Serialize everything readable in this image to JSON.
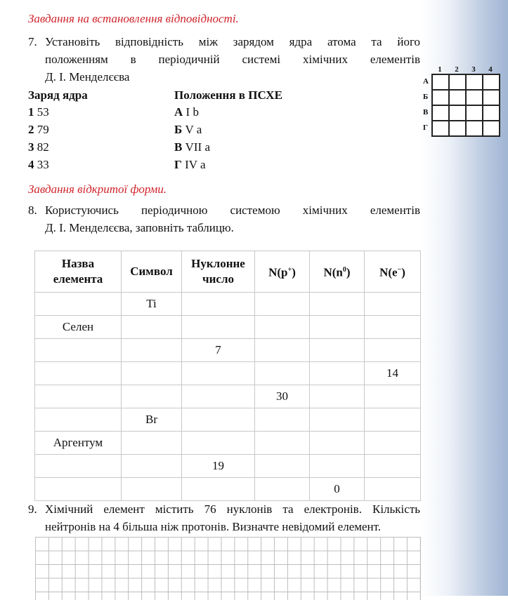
{
  "section1_title": "Завдання на встановлення відповідності.",
  "q7": {
    "number": "7.",
    "line1": "Установіть відповідність між зарядом ядра атома та його",
    "line2": "положенням в періодичній системі хімічних елементів",
    "line3": "Д. І. Менделєєва",
    "col1_header": "Заряд ядра",
    "col2_header": "Положення в ПСХЕ",
    "left": [
      {
        "k": "1",
        "v": "53"
      },
      {
        "k": "2",
        "v": "79"
      },
      {
        "k": "3",
        "v": "82"
      },
      {
        "k": "4",
        "v": "33"
      }
    ],
    "right": [
      {
        "k": "А",
        "v": "I b"
      },
      {
        "k": "Б",
        "v": "V a"
      },
      {
        "k": "В",
        "v": "VII a"
      },
      {
        "k": "Г",
        "v": "IV a"
      }
    ],
    "matrix": {
      "cols": [
        "1",
        "2",
        "3",
        "4"
      ],
      "rows": [
        "А",
        "Б",
        "В",
        "Г"
      ]
    }
  },
  "section2_title": "Завдання відкритої форми.",
  "q8": {
    "number": "8.",
    "line1": "Користуючись періодичною системою хімічних елементів",
    "line2": "Д. І. Менделєєва, заповніть таблицю.",
    "headers": {
      "name1": "Назва",
      "name2": "елемента",
      "symbol": "Символ",
      "nuc1": "Нуклонне",
      "nuc2": "число",
      "p": "N(p",
      "p_sup": "+",
      "n": "N(n",
      "n_sup": "0",
      "e": "N(e",
      "e_sup": "−",
      "close": ")"
    },
    "rows": [
      [
        "",
        "Ti",
        "",
        "",
        "",
        ""
      ],
      [
        "Селен",
        "",
        "",
        "",
        "",
        ""
      ],
      [
        "",
        "",
        "7",
        "",
        "",
        ""
      ],
      [
        "",
        "",
        "",
        "",
        "",
        "14"
      ],
      [
        "",
        "",
        "",
        "30",
        "",
        ""
      ],
      [
        "",
        "Br",
        "",
        "",
        "",
        ""
      ],
      [
        "Аргентум",
        "",
        "",
        "",
        "",
        ""
      ],
      [
        "",
        "",
        "19",
        "",
        "",
        ""
      ],
      [
        "",
        "",
        "",
        "",
        "0",
        ""
      ]
    ]
  },
  "q9": {
    "number": "9.",
    "line1": "Хімічний елемент містить 76 нуклонів та електронів. Кількість",
    "line2": "нейтронів на 4 більша ніж протонів. Визначте невідомий елемент."
  }
}
